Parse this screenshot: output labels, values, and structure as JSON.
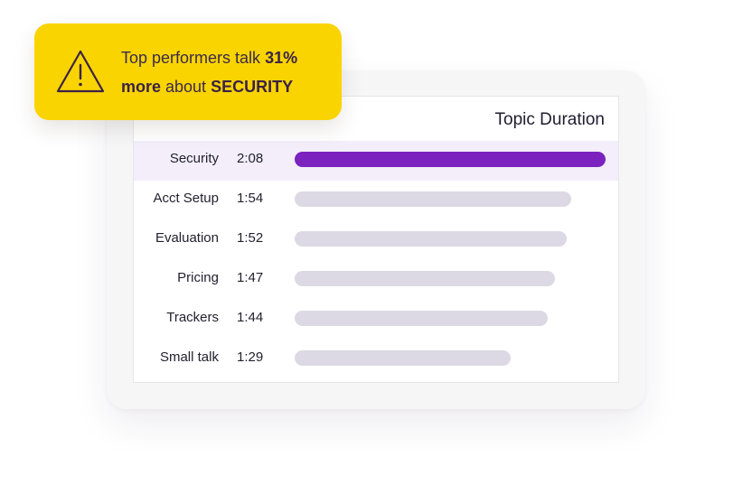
{
  "callout": {
    "icon": "warning-icon",
    "text_part1": "Top performers talk ",
    "text_bold1": "31%",
    "text_bold2": "more",
    "text_part2": " about ",
    "text_bold3": "SECURITY"
  },
  "colors": {
    "callout_bg": "#fad400",
    "highlight_bar": "#7b22bf",
    "default_bar": "#dcd9e4",
    "highlight_row": "#f3eefa"
  },
  "chart_data": {
    "type": "bar",
    "orientation": "horizontal",
    "title": "Topic Duration",
    "categories": [
      "Security",
      "Acct Setup",
      "Evaluation",
      "Pricing",
      "Trackers",
      "Small talk"
    ],
    "time_labels": [
      "2:08",
      "1:54",
      "1:52",
      "1:47",
      "1:44",
      "1:29"
    ],
    "values_seconds": [
      128,
      114,
      112,
      107,
      104,
      89
    ],
    "highlighted_category": "Security",
    "xlim_seconds": [
      0,
      128
    ],
    "grid": false,
    "legend": "none"
  }
}
